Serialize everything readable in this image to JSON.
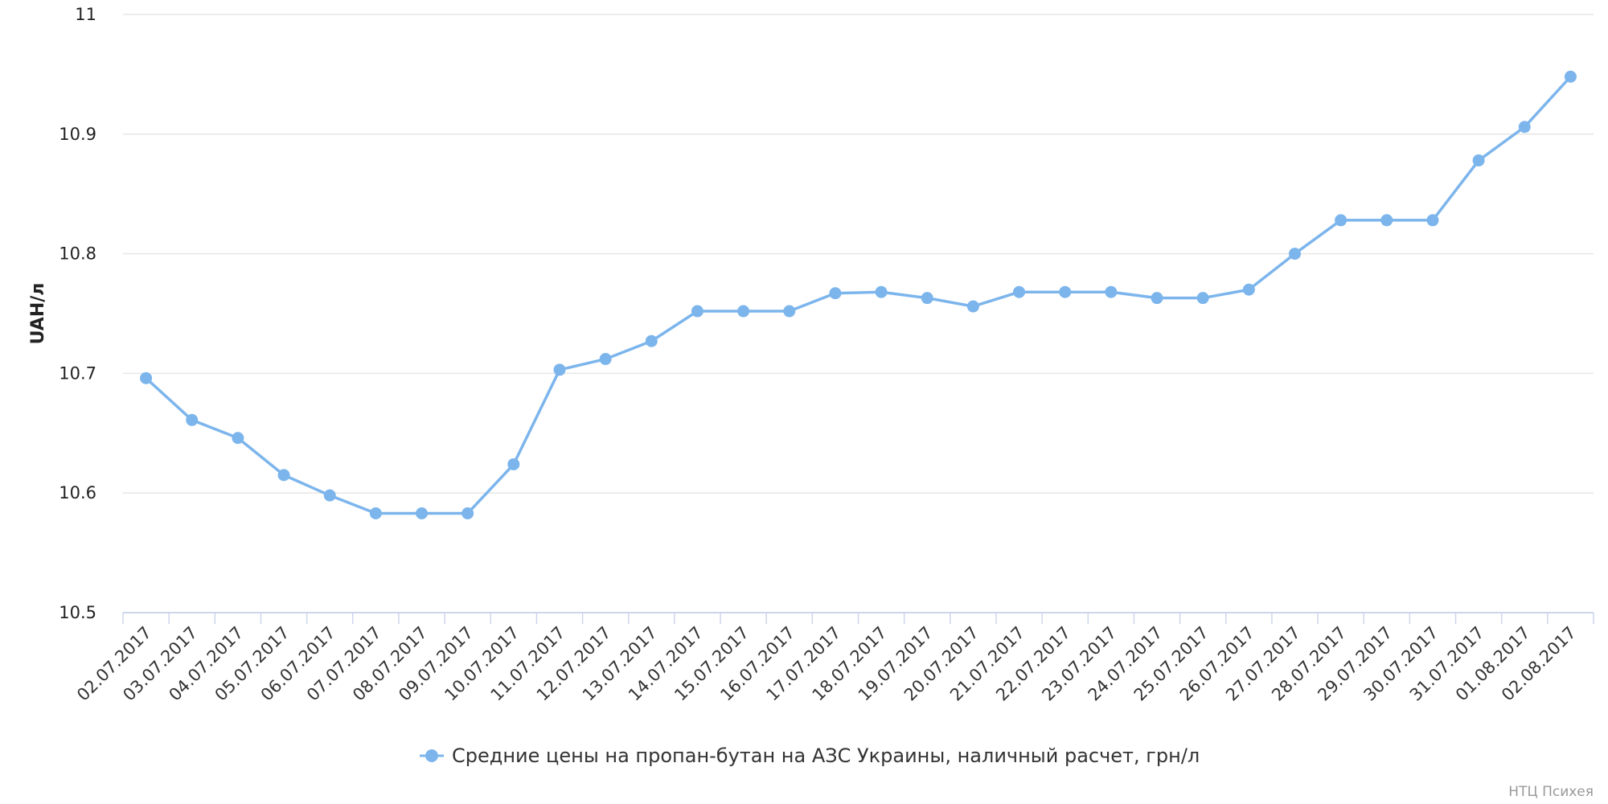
{
  "chart_data": {
    "type": "line",
    "ylabel": "UAH/л",
    "ylim": [
      10.5,
      11
    ],
    "yticks": [
      "10.5",
      "10.6",
      "10.7",
      "10.8",
      "10.9",
      "11"
    ],
    "grid": true,
    "legend_position": "bottom",
    "categories": [
      "02.07.2017",
      "03.07.2017",
      "04.07.2017",
      "05.07.2017",
      "06.07.2017",
      "07.07.2017",
      "08.07.2017",
      "09.07.2017",
      "10.07.2017",
      "11.07.2017",
      "12.07.2017",
      "13.07.2017",
      "14.07.2017",
      "15.07.2017",
      "16.07.2017",
      "17.07.2017",
      "18.07.2017",
      "19.07.2017",
      "20.07.2017",
      "21.07.2017",
      "22.07.2017",
      "23.07.2017",
      "24.07.2017",
      "25.07.2017",
      "26.07.2017",
      "27.07.2017",
      "28.07.2017",
      "29.07.2017",
      "30.07.2017",
      "31.07.2017",
      "01.08.2017",
      "02.08.2017"
    ],
    "series": [
      {
        "name": "Средние цены на пропан-бутан на АЗС Украины, наличный расчет, грн/л",
        "color": "#7cb5ec",
        "values": [
          10.696,
          10.661,
          10.646,
          10.615,
          10.598,
          10.583,
          10.583,
          10.583,
          10.624,
          10.703,
          10.712,
          10.727,
          10.752,
          10.752,
          10.752,
          10.767,
          10.768,
          10.763,
          10.756,
          10.768,
          10.768,
          10.768,
          10.763,
          10.763,
          10.77,
          10.8,
          10.828,
          10.828,
          10.828,
          10.878,
          10.906,
          10.948
        ]
      }
    ]
  },
  "credit": "НТЦ Психея"
}
